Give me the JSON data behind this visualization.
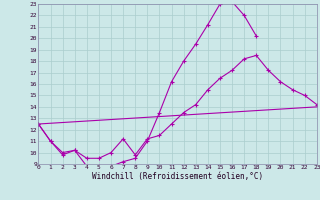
{
  "xlabel": "Windchill (Refroidissement éolien,°C)",
  "xlim": [
    0,
    23
  ],
  "ylim": [
    9,
    23
  ],
  "xticks": [
    0,
    1,
    2,
    3,
    4,
    5,
    6,
    7,
    8,
    9,
    10,
    11,
    12,
    13,
    14,
    15,
    16,
    17,
    18,
    19,
    20,
    21,
    22,
    23
  ],
  "yticks": [
    9,
    10,
    11,
    12,
    13,
    14,
    15,
    16,
    17,
    18,
    19,
    20,
    21,
    22,
    23
  ],
  "bg_color": "#cce8e8",
  "grid_color": "#aacece",
  "line_color": "#aa00aa",
  "curve1_x": [
    0,
    1,
    2,
    3,
    4,
    5,
    6,
    7,
    8,
    9,
    10,
    11,
    12,
    13,
    14,
    15,
    16,
    17,
    18
  ],
  "curve1_y": [
    12.5,
    11.0,
    9.8,
    10.2,
    8.8,
    8.8,
    8.8,
    9.2,
    9.5,
    11.0,
    13.5,
    16.2,
    18.0,
    19.5,
    21.2,
    23.0,
    23.2,
    22.0,
    20.2
  ],
  "curve2_x": [
    0,
    1,
    2,
    3,
    4,
    5,
    6,
    7,
    8,
    9,
    10,
    11,
    12,
    13,
    14,
    15,
    16,
    17,
    18,
    19,
    20,
    21,
    22,
    23
  ],
  "curve2_y": [
    12.5,
    11.0,
    10.0,
    10.2,
    9.5,
    9.5,
    10.0,
    11.2,
    9.8,
    11.2,
    11.5,
    12.5,
    13.5,
    14.2,
    15.5,
    16.5,
    17.2,
    18.2,
    18.5,
    17.2,
    16.2,
    15.5,
    15.0,
    14.2
  ],
  "curve3_x": [
    0,
    23
  ],
  "curve3_y": [
    12.5,
    14.0
  ]
}
